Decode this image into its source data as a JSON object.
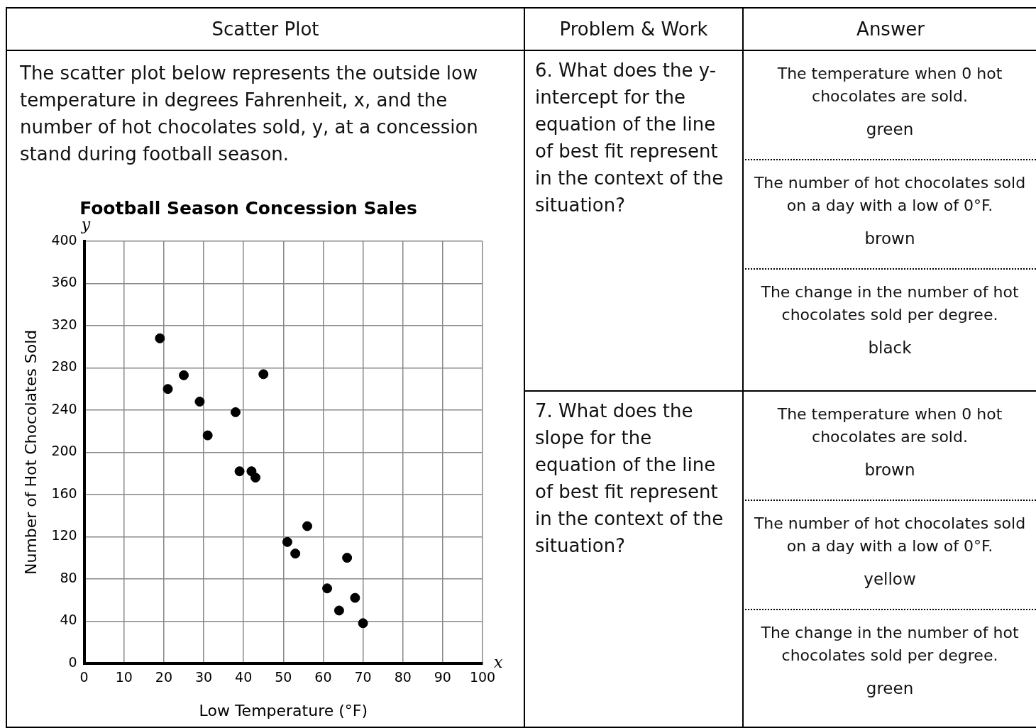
{
  "chart_data": [
    {
      "type": "scatter",
      "title": "Football Season Concession Sales",
      "xlabel": "Low Temperature (°F)",
      "ylabel": "Number of Hot Chocolates Sold",
      "x": [
        19,
        21,
        25,
        29,
        31,
        38,
        39,
        42,
        43,
        45,
        51,
        53,
        56,
        61,
        64,
        66,
        68,
        70
      ],
      "series": [
        {
          "color": "#000000",
          "values": [
            308,
            260,
            273,
            248,
            216,
            238,
            182,
            182,
            176,
            274,
            115,
            104,
            130,
            71,
            50,
            100,
            62,
            38
          ]
        }
      ],
      "xlim": [
        0,
        100
      ],
      "xticks": [
        0,
        10,
        20,
        30,
        40,
        50,
        60,
        70,
        80,
        90,
        100
      ],
      "ylim": [
        0,
        400
      ],
      "yticks": [
        0,
        40,
        80,
        120,
        160,
        200,
        240,
        280,
        320,
        360,
        400
      ],
      "grid": true,
      "marker": "circle",
      "annotations": [
        "Scatter Plot",
        "The scatter plot below represents the outside low temperature in degrees Fahrenheit, x, and the number of hot chocolates sold, y, at a concession stand during football season.",
        "x",
        "y"
      ]
    },
    {
      "type": "other",
      "title": "Problem & Work",
      "subtitle": "Answer",
      "annotations": [
        "6. What does the y-intercept for the equation of the line of best fit represent in the context of the situation?",
        "The temperature when 0 hot chocolates are sold.",
        "green",
        "The number of hot chocolates sold on a day with a low of 0°F.",
        "brown",
        "The change in the number of hot chocolates sold per degree.",
        "black",
        "7. What does the slope for the equation of the line of best fit represent in the context of the situation?",
        "The temperature when 0 hot chocolates are sold.",
        "brown",
        "The number of hot chocolates sold on a day with a low of 0°F.",
        "yellow",
        "The change in the number of hot chocolates sold per degree.",
        "green"
      ]
    }
  ]
}
